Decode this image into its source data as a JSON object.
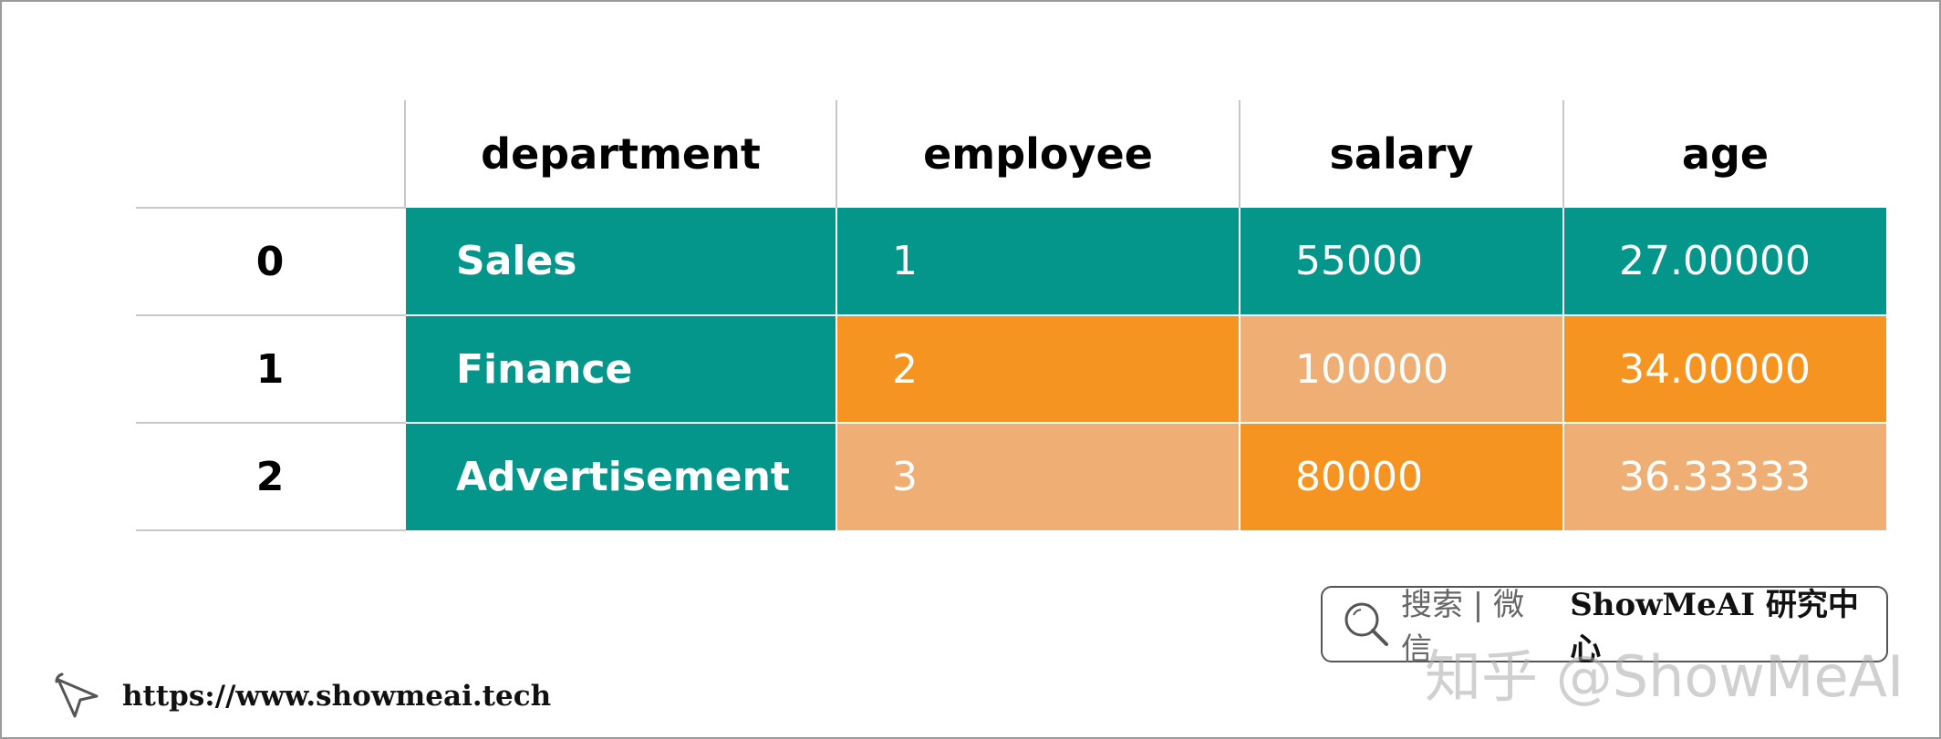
{
  "table": {
    "columns": [
      "department",
      "employee",
      "salary",
      "age"
    ],
    "rows": [
      {
        "index": "0",
        "department": "Sales",
        "employee": "1",
        "salary": "55000",
        "age": "27.00000",
        "colors": {
          "department": "#04968A",
          "employee": "#04968A",
          "salary": "#04968A",
          "age": "#04968A"
        }
      },
      {
        "index": "1",
        "department": "Finance",
        "employee": "2",
        "salary": "100000",
        "age": "34.00000",
        "colors": {
          "department": "#04968A",
          "employee": "#F69422",
          "salary": "#EEAE74",
          "age": "#F69422"
        }
      },
      {
        "index": "2",
        "department": "Advertisement",
        "employee": "3",
        "salary": "80000",
        "age": "36.33333",
        "colors": {
          "department": "#04968A",
          "employee": "#EEAE74",
          "salary": "#F69422",
          "age": "#EEAE74"
        }
      }
    ]
  },
  "palette": {
    "teal": "#04968A",
    "orange": "#F69422",
    "light_orange": "#EEAE74"
  },
  "badge": {
    "search_text": "搜索 | 微信",
    "brand": "ShowMeAI 研究中心",
    "icon": "search-icon"
  },
  "watermark": "知乎 @ShowMeAI",
  "footer": {
    "url": "https://www.showmeai.tech",
    "icon": "cursor-icon"
  }
}
